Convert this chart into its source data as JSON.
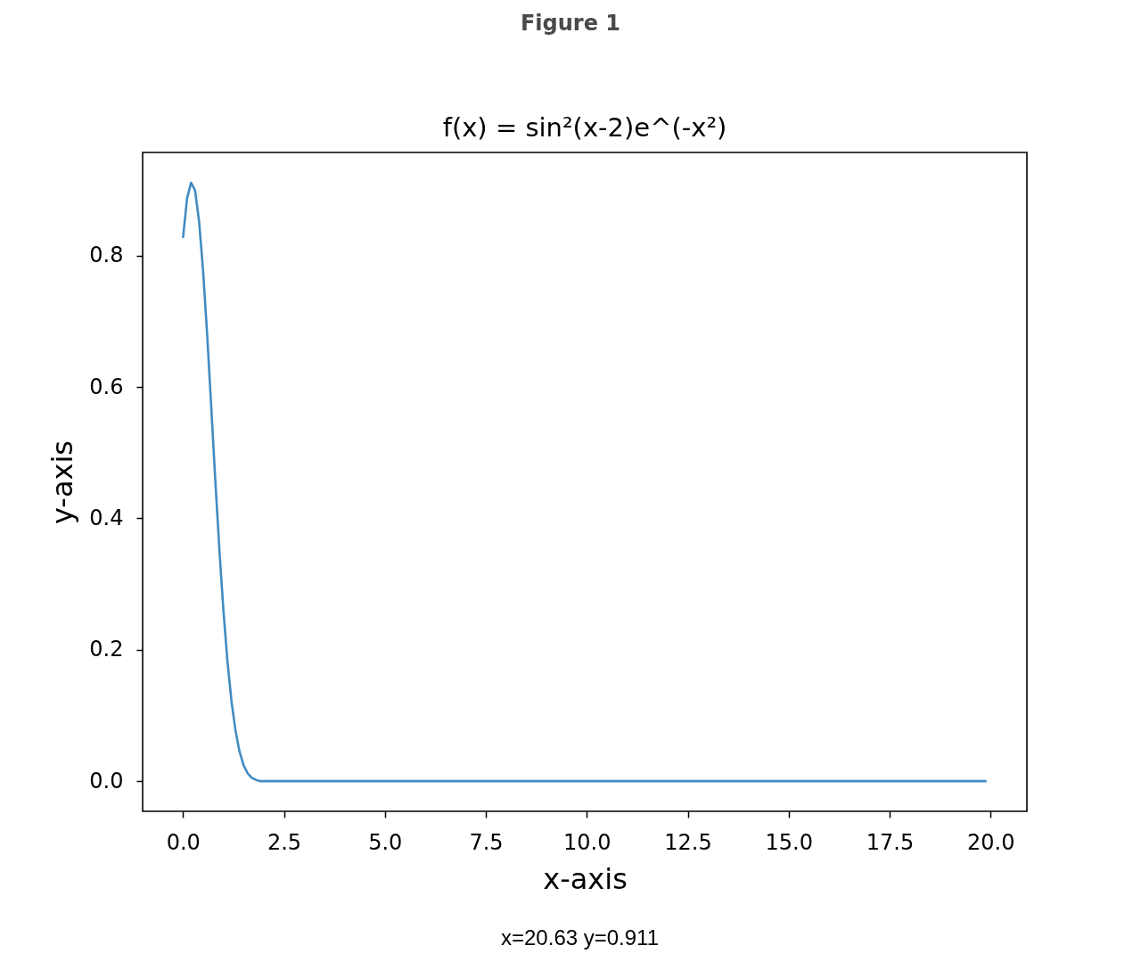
{
  "chart_data": {
    "type": "line",
    "title": "f(x) = sin²(x-2)e^(-x²)",
    "xlabel": "x-axis",
    "ylabel": "y-axis",
    "x": [
      0,
      0.1,
      0.2,
      0.3,
      0.4,
      0.5,
      0.6,
      0.7,
      0.8,
      0.9,
      1.0,
      1.1,
      1.2,
      1.3,
      1.4,
      1.5,
      1.6,
      1.7,
      1.8,
      1.9,
      2.0,
      2.5,
      3.0,
      5.0,
      10.0,
      15.0,
      19.9
    ],
    "series": [
      {
        "color": "#428bc2",
        "values": [
          0.827,
          0.887,
          0.911,
          0.899,
          0.851,
          0.775,
          0.678,
          0.569,
          0.458,
          0.353,
          0.261,
          0.183,
          0.122,
          0.077,
          0.045,
          0.024,
          0.012,
          0.005,
          0.002,
          0.0,
          0.0,
          0.0,
          0.0,
          0.0,
          0.0,
          0.0,
          0.0
        ]
      }
    ],
    "xlim": [
      -1.0,
      20.9
    ],
    "ylim": [
      -0.046,
      0.957
    ],
    "xticks": [
      {
        "value": 0,
        "label": "0.0"
      },
      2.5,
      {
        "value": 5,
        "label": "5.0"
      },
      7.5,
      {
        "value": 10,
        "label": "10.0"
      },
      12.5,
      {
        "value": 15,
        "label": "15.0"
      },
      17.5,
      {
        "value": 20,
        "label": "20.0"
      }
    ],
    "yticks": [
      {
        "value": 0,
        "label": "0.0"
      },
      0.2,
      0.4,
      0.6,
      0.8
    ],
    "line_style": "solid",
    "annotations": [
      "Figure 1",
      "x=20.63 y=0.911"
    ]
  }
}
